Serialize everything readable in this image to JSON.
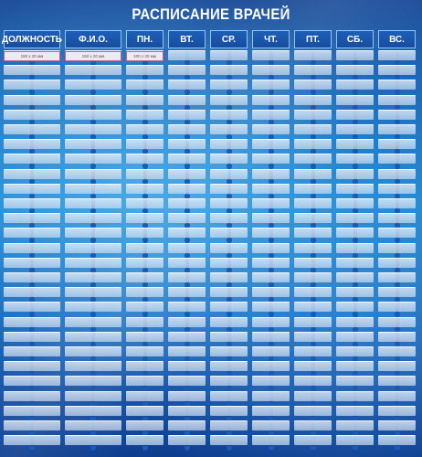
{
  "title": "РАСПИСАНИЕ ВРАЧЕЙ",
  "columns": [
    "ДОЛЖНОСТЬ",
    "Ф.И.О.",
    "ПН.",
    "ВТ.",
    "СР.",
    "ЧТ.",
    "ПТ.",
    "СБ.",
    "ВС."
  ],
  "size_labels": [
    "150 х 20 мм",
    "150 х 20 мм",
    "100 х 20 мм"
  ],
  "row_count": 27
}
